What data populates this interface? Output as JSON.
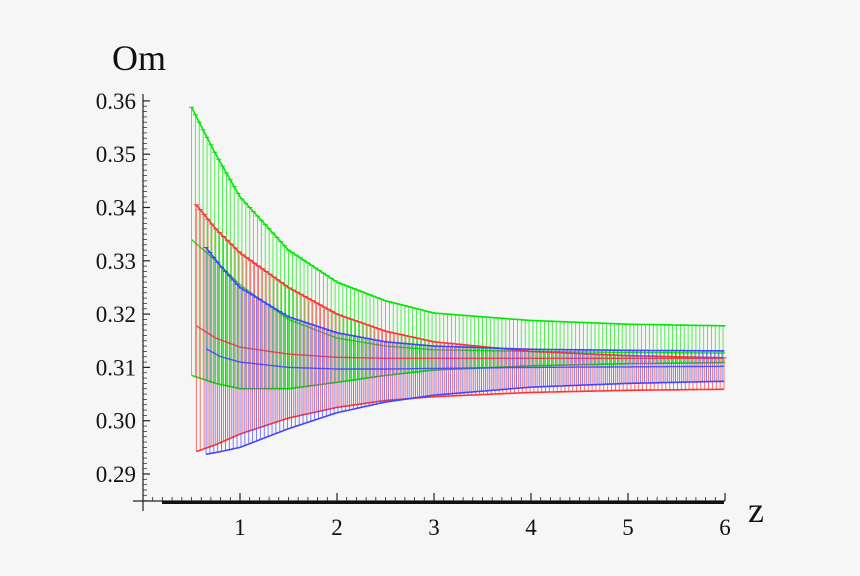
{
  "chart_data": {
    "type": "line",
    "title": "",
    "xlabel": "z",
    "ylabel": "Om",
    "xlim": [
      0,
      6
    ],
    "ylim": [
      0.285,
      0.36
    ],
    "x_ticks": [
      "1",
      "2",
      "3",
      "4",
      "5",
      "6"
    ],
    "y_ticks": [
      "0.29",
      "0.30",
      "0.31",
      "0.32",
      "0.33",
      "0.34",
      "0.35",
      "0.36"
    ],
    "grid": false,
    "legend": "none",
    "error_bands": [
      {
        "color": "#ff3333",
        "x": [
          0.55,
          0.75,
          1.0,
          1.5,
          2.0,
          2.5,
          3.0,
          4.0,
          5.0,
          6.0
        ],
        "center": [
          0.3178,
          0.3155,
          0.3138,
          0.3125,
          0.3119,
          0.3117,
          0.3117,
          0.3117,
          0.3117,
          0.3117
        ],
        "upper": [
          0.3405,
          0.336,
          0.3315,
          0.325,
          0.32,
          0.3168,
          0.3148,
          0.313,
          0.3122,
          0.3118
        ],
        "lower": [
          0.2942,
          0.2955,
          0.2975,
          0.3005,
          0.3025,
          0.3038,
          0.3045,
          0.3053,
          0.3057,
          0.3059
        ]
      },
      {
        "color": "#4444ff",
        "x": [
          0.65,
          0.8,
          1.0,
          1.5,
          2.0,
          2.5,
          3.0,
          4.0,
          5.0,
          6.0
        ],
        "center": [
          0.3135,
          0.312,
          0.311,
          0.31,
          0.3097,
          0.3097,
          0.3098,
          0.31,
          0.3101,
          0.3102
        ],
        "upper": [
          0.3325,
          0.329,
          0.325,
          0.3195,
          0.3165,
          0.3148,
          0.314,
          0.3134,
          0.3132,
          0.3131
        ],
        "lower": [
          0.2937,
          0.2942,
          0.295,
          0.2985,
          0.3015,
          0.3035,
          0.3048,
          0.3063,
          0.307,
          0.3074
        ]
      },
      {
        "color": "#00e800",
        "x": [
          0.5,
          0.75,
          1.0,
          1.5,
          2.0,
          2.5,
          3.0,
          4.0,
          5.0,
          6.0
        ],
        "center": [
          0.334,
          0.33,
          0.3255,
          0.319,
          0.3155,
          0.314,
          0.3133,
          0.313,
          0.3128,
          0.3127
        ],
        "upper": [
          0.3588,
          0.35,
          0.342,
          0.332,
          0.326,
          0.3225,
          0.3202,
          0.3188,
          0.3181,
          0.3178
        ],
        "lower": [
          0.3085,
          0.307,
          0.306,
          0.306,
          0.3072,
          0.3085,
          0.3095,
          0.3103,
          0.3107,
          0.3109
        ]
      }
    ]
  }
}
